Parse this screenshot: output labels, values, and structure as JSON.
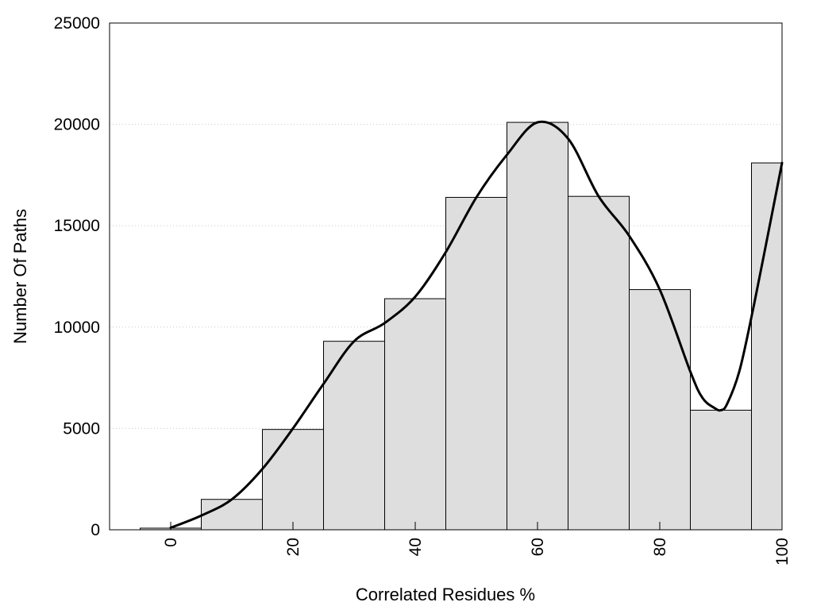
{
  "chart_data": {
    "type": "bar",
    "title": "",
    "xlabel": "Correlated Residues %",
    "ylabel": "Number Of Paths",
    "bar_width": 10,
    "x": [
      0,
      10,
      20,
      30,
      40,
      50,
      60,
      70,
      80,
      90,
      100
    ],
    "values": [
      80,
      1500,
      4950,
      9300,
      11400,
      16400,
      20100,
      16450,
      11850,
      5900,
      18100
    ],
    "xlim": [
      -10,
      100
    ],
    "ylim": [
      0,
      25000
    ],
    "xticks": [
      "0",
      "20",
      "40",
      "60",
      "80",
      "100"
    ],
    "xtick_values": [
      0,
      20,
      40,
      60,
      80,
      100
    ],
    "yticks": [
      "0",
      "5000",
      "10000",
      "15000",
      "20000",
      "25000"
    ],
    "ytick_values": [
      0,
      5000,
      10000,
      15000,
      20000,
      25000
    ],
    "grid": "horizontal dotted",
    "curve": {
      "x": [
        0,
        5,
        10,
        15,
        20,
        25,
        30,
        35,
        40,
        45,
        50,
        55,
        60,
        65,
        70,
        75,
        80,
        85,
        87,
        89,
        90,
        91,
        93,
        95,
        97,
        100
      ],
      "y": [
        100,
        700,
        1500,
        3000,
        5000,
        7200,
        9300,
        10200,
        11500,
        13700,
        16400,
        18500,
        20100,
        19300,
        16450,
        14500,
        11850,
        7800,
        6500,
        6000,
        5900,
        6200,
        7800,
        10500,
        13500,
        18100
      ]
    }
  }
}
